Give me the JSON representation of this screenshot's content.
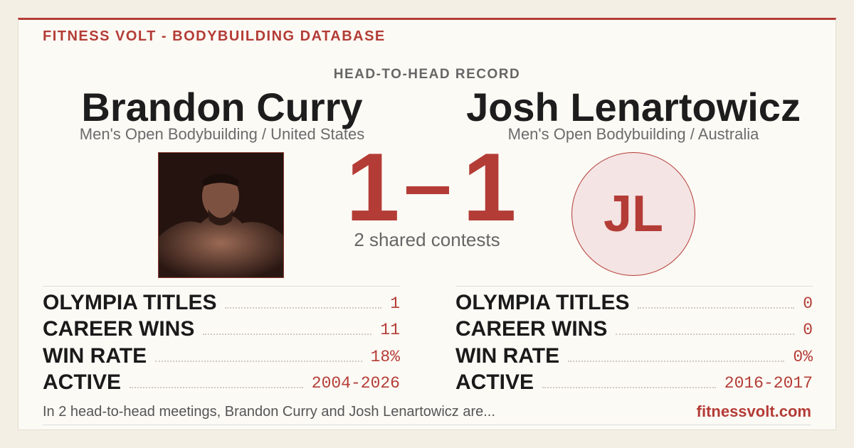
{
  "header": {
    "brand": "FITNESS VOLT - BODYBUILDING DATABASE",
    "subtitle": "HEAD-TO-HEAD RECORD"
  },
  "athletes": [
    {
      "name": "Brandon Curry",
      "division": "Men's Open Bodybuilding / United States"
    },
    {
      "name": "Josh Lenartowicz",
      "division": "Men's Open Bodybuilding / Australia",
      "initials": "JL"
    }
  ],
  "score": {
    "left": 1,
    "right": 1,
    "caption": "2 shared contests"
  },
  "stats": [
    [
      {
        "label": "OLYMPIA TITLES",
        "value": "1"
      },
      {
        "label": "CAREER WINS",
        "value": "11"
      },
      {
        "label": "WIN RATE",
        "value": "18%"
      },
      {
        "label": "ACTIVE",
        "value": "2004-2026"
      }
    ],
    [
      {
        "label": "OLYMPIA TITLES",
        "value": "0"
      },
      {
        "label": "CAREER WINS",
        "value": "0"
      },
      {
        "label": "WIN RATE",
        "value": "0%"
      },
      {
        "label": "ACTIVE",
        "value": "2016-2017"
      }
    ]
  ],
  "footer": {
    "summary": "In 2 head-to-head meetings, Brandon Curry and Josh Lenartowicz are...",
    "site": "fitnessvolt.com"
  }
}
